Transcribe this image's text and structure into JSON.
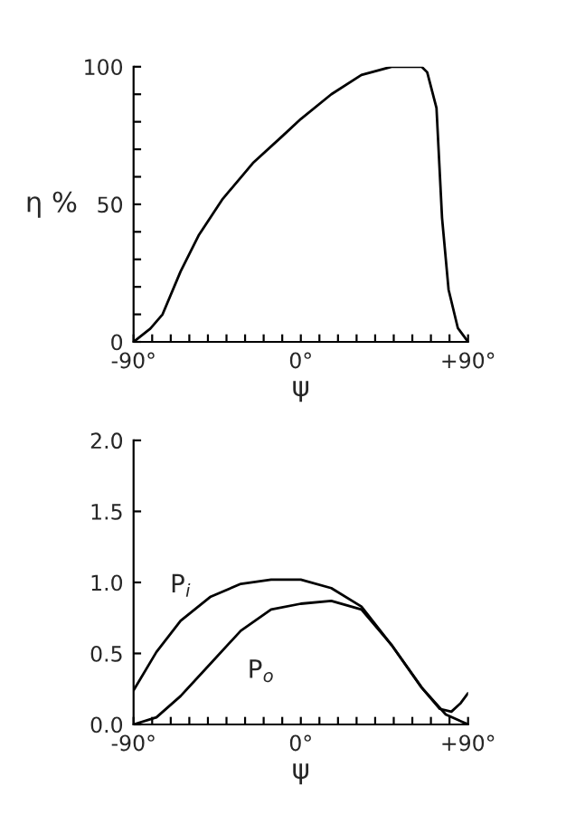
{
  "chart_data": [
    {
      "type": "line",
      "xlabel": "ψ",
      "ylabel": "η %",
      "xlim": [
        -90,
        90
      ],
      "ylim": [
        0,
        100
      ],
      "xticks": [
        {
          "value": -90,
          "label": "-90°"
        },
        {
          "value": -80,
          "label": null
        },
        {
          "value": -70,
          "label": null
        },
        {
          "value": -60,
          "label": null
        },
        {
          "value": -50,
          "label": null
        },
        {
          "value": -40,
          "label": null
        },
        {
          "value": -30,
          "label": null
        },
        {
          "value": -20,
          "label": null
        },
        {
          "value": -10,
          "label": null
        },
        {
          "value": 0,
          "label": "0°"
        },
        {
          "value": 10,
          "label": null
        },
        {
          "value": 20,
          "label": null
        },
        {
          "value": 30,
          "label": null
        },
        {
          "value": 40,
          "label": null
        },
        {
          "value": 50,
          "label": null
        },
        {
          "value": 60,
          "label": null
        },
        {
          "value": 70,
          "label": null
        },
        {
          "value": 80,
          "label": null
        },
        {
          "value": 90,
          "label": "+90°"
        }
      ],
      "yticks": [
        0,
        {
          "value": 10,
          "label": null
        },
        {
          "value": 20,
          "label": null
        },
        {
          "value": 30,
          "label": null
        },
        {
          "value": 40,
          "label": null
        },
        50,
        {
          "value": 60,
          "label": null
        },
        {
          "value": 70,
          "label": null
        },
        {
          "value": 80,
          "label": null
        },
        {
          "value": 90,
          "label": null
        },
        100
      ],
      "grid": false,
      "legend": false,
      "series": [
        {
          "color": "#000000",
          "x": [
            -90,
            -81,
            -74.4,
            -64.7,
            -55,
            -42,
            -25.8,
            -9.6,
            0,
            16.4,
            32.6,
            48.8,
            65,
            68,
            73,
            76,
            79.5,
            84.5,
            90
          ],
          "values": [
            0,
            4.8,
            10,
            25.6,
            38.7,
            52,
            65,
            75,
            81,
            90,
            97,
            100,
            100,
            98,
            85,
            45,
            19,
            5,
            0
          ]
        }
      ]
    },
    {
      "type": "line",
      "xlabel": "ψ",
      "xlim": [
        -90,
        90
      ],
      "ylim": [
        0,
        2.0
      ],
      "xticks": [
        {
          "value": -90,
          "label": "-90°"
        },
        {
          "value": -80,
          "label": null
        },
        {
          "value": -70,
          "label": null
        },
        {
          "value": -60,
          "label": null
        },
        {
          "value": -50,
          "label": null
        },
        {
          "value": -40,
          "label": null
        },
        {
          "value": -30,
          "label": null
        },
        {
          "value": -20,
          "label": null
        },
        {
          "value": -10,
          "label": null
        },
        {
          "value": 0,
          "label": "0°"
        },
        {
          "value": 10,
          "label": null
        },
        {
          "value": 20,
          "label": null
        },
        {
          "value": 30,
          "label": null
        },
        {
          "value": 40,
          "label": null
        },
        {
          "value": 50,
          "label": null
        },
        {
          "value": 60,
          "label": null
        },
        {
          "value": 70,
          "label": null
        },
        {
          "value": 80,
          "label": null
        },
        {
          "value": 90,
          "label": "+90°"
        }
      ],
      "yticks": [
        {
          "value": 0,
          "label": "0.0"
        },
        0.5,
        {
          "value": 1.0,
          "label": "1.0"
        },
        1.5,
        {
          "value": 2.0,
          "label": "2.0"
        }
      ],
      "grid": false,
      "legend": false,
      "series": [
        {
          "name": "P$_{i}$",
          "color": "#000000",
          "x": [
            -90,
            -77.7,
            -64.7,
            -48.5,
            -32.3,
            -16,
            0,
            16.4,
            32.6,
            48.8,
            65,
            74.8,
            81,
            86,
            90
          ],
          "values": [
            0.24,
            0.51,
            0.73,
            0.9,
            0.99,
            1.02,
            1.02,
            0.96,
            0.83,
            0.56,
            0.26,
            0.11,
            0.09,
            0.15,
            0.22
          ]
        },
        {
          "name": "P$_{o}$",
          "color": "#000000",
          "x": [
            -90,
            -77.7,
            -64.7,
            -48.5,
            -32.3,
            -16,
            0,
            16.4,
            32.6,
            48.8,
            65,
            78,
            90
          ],
          "values": [
            0,
            0.05,
            0.2,
            0.43,
            0.66,
            0.81,
            0.85,
            0.87,
            0.81,
            0.56,
            0.26,
            0.07,
            0
          ]
        }
      ]
    }
  ]
}
